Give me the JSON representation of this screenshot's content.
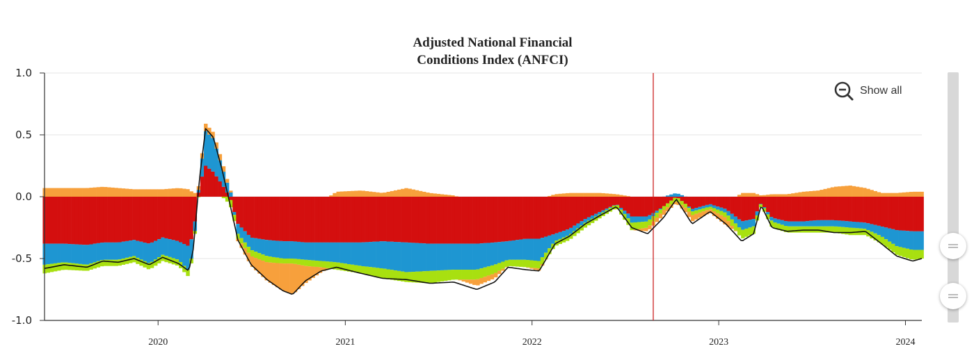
{
  "chart_data": {
    "type": "area",
    "title_lines": [
      "Adjusted National Financial",
      "Conditions Index (ANFCI)"
    ],
    "ylim": [
      -1.0,
      1.0
    ],
    "yticks": [
      "1.0",
      "0.5",
      "0.0",
      "-0.5",
      "-1.0"
    ],
    "xticks": [
      "2020",
      "2021",
      "2022",
      "2023",
      "2024"
    ],
    "xtick_dates": [
      "2020-01-01",
      "2021-01-01",
      "2022-01-01",
      "2023-01-01",
      "2024-01-01"
    ],
    "xrange": [
      "2019-05-24",
      "2024-02-02"
    ],
    "marker_date": "2022-08-26",
    "colors": {
      "red": "#d40f0f",
      "blue": "#1e96d2",
      "green": "#a8e010",
      "orange": "#f7a03c",
      "line": "#111111",
      "marker": "#cc2222",
      "grid": "#e6e6e6"
    },
    "series_order": [
      "red",
      "blue",
      "green",
      "orange"
    ],
    "series": [
      {
        "date": "2019-05-24",
        "red": -0.38,
        "blue": -0.17,
        "green": -0.07,
        "orange": 0.07,
        "anfci": -0.58
      },
      {
        "date": "2019-07-01",
        "red": -0.38,
        "blue": -0.15,
        "green": -0.06,
        "orange": 0.07,
        "anfci": -0.55
      },
      {
        "date": "2019-08-15",
        "red": -0.39,
        "blue": -0.16,
        "green": -0.05,
        "orange": 0.07,
        "anfci": -0.57
      },
      {
        "date": "2019-09-15",
        "red": -0.37,
        "blue": -0.14,
        "green": -0.05,
        "orange": 0.08,
        "anfci": -0.52
      },
      {
        "date": "2019-10-15",
        "red": -0.37,
        "blue": -0.14,
        "green": -0.05,
        "orange": 0.07,
        "anfci": -0.53
      },
      {
        "date": "2019-11-15",
        "red": -0.35,
        "blue": -0.13,
        "green": -0.05,
        "orange": 0.06,
        "anfci": -0.5
      },
      {
        "date": "2019-12-15",
        "red": -0.38,
        "blue": -0.16,
        "green": -0.05,
        "orange": 0.06,
        "anfci": -0.55
      },
      {
        "date": "2020-01-10",
        "red": -0.33,
        "blue": -0.14,
        "green": -0.05,
        "orange": 0.06,
        "anfci": -0.49
      },
      {
        "date": "2020-02-10",
        "red": -0.36,
        "blue": -0.15,
        "green": -0.05,
        "orange": 0.07,
        "anfci": -0.54
      },
      {
        "date": "2020-03-01",
        "red": -0.4,
        "blue": -0.2,
        "green": -0.05,
        "orange": 0.06,
        "anfci": -0.6
      },
      {
        "date": "2020-03-10",
        "red": -0.3,
        "blue": -0.12,
        "green": -0.03,
        "orange": 0.03,
        "anfci": -0.42
      },
      {
        "date": "2020-03-22",
        "red": 0.1,
        "blue": 0.05,
        "green": 0.0,
        "orange": 0.03,
        "anfci": 0.15
      },
      {
        "date": "2020-04-03",
        "red": 0.25,
        "blue": 0.28,
        "green": 0.0,
        "orange": 0.06,
        "anfci": 0.55
      },
      {
        "date": "2020-04-18",
        "red": 0.2,
        "blue": 0.27,
        "green": 0.0,
        "orange": 0.05,
        "anfci": 0.48
      },
      {
        "date": "2020-05-05",
        "red": 0.1,
        "blue": 0.14,
        "green": 0.0,
        "orange": 0.05,
        "anfci": 0.22
      },
      {
        "date": "2020-05-20",
        "red": 0.0,
        "blue": 0.05,
        "green": -0.06,
        "orange": 0.02,
        "anfci": -0.05
      },
      {
        "date": "2020-06-05",
        "red": -0.22,
        "blue": -0.08,
        "green": -0.04,
        "orange": -0.02,
        "anfci": -0.35
      },
      {
        "date": "2020-07-01",
        "red": -0.33,
        "blue": -0.1,
        "green": -0.05,
        "orange": -0.08,
        "anfci": -0.55
      },
      {
        "date": "2020-08-01",
        "red": -0.35,
        "blue": -0.13,
        "green": -0.05,
        "orange": -0.15,
        "anfci": -0.67
      },
      {
        "date": "2020-09-01",
        "red": -0.36,
        "blue": -0.14,
        "green": -0.04,
        "orange": -0.22,
        "anfci": -0.76
      },
      {
        "date": "2020-09-20",
        "red": -0.36,
        "blue": -0.14,
        "green": -0.04,
        "orange": -0.25,
        "anfci": -0.79
      },
      {
        "date": "2020-10-15",
        "red": -0.37,
        "blue": -0.14,
        "green": -0.05,
        "orange": -0.14,
        "anfci": -0.68
      },
      {
        "date": "2020-11-15",
        "red": -0.37,
        "blue": -0.15,
        "green": -0.05,
        "orange": -0.04,
        "anfci": -0.6
      },
      {
        "date": "2020-12-15",
        "red": -0.37,
        "blue": -0.16,
        "green": -0.06,
        "orange": 0.04,
        "anfci": -0.57
      },
      {
        "date": "2021-02-01",
        "red": -0.37,
        "blue": -0.19,
        "green": -0.06,
        "orange": 0.05,
        "anfci": -0.62
      },
      {
        "date": "2021-03-15",
        "red": -0.36,
        "blue": -0.22,
        "green": -0.08,
        "orange": 0.03,
        "anfci": -0.66
      },
      {
        "date": "2021-05-01",
        "red": -0.37,
        "blue": -0.24,
        "green": -0.08,
        "orange": 0.07,
        "anfci": -0.67
      },
      {
        "date": "2021-06-15",
        "red": -0.38,
        "blue": -0.22,
        "green": -0.1,
        "orange": 0.03,
        "anfci": -0.7
      },
      {
        "date": "2021-08-01",
        "red": -0.38,
        "blue": -0.21,
        "green": -0.08,
        "orange": 0.01,
        "anfci": -0.69
      },
      {
        "date": "2021-09-15",
        "red": -0.38,
        "blue": -0.21,
        "green": -0.08,
        "orange": -0.05,
        "anfci": -0.75
      },
      {
        "date": "2021-10-20",
        "red": -0.37,
        "blue": -0.18,
        "green": -0.07,
        "orange": -0.04,
        "anfci": -0.69
      },
      {
        "date": "2021-11-15",
        "red": -0.36,
        "blue": -0.15,
        "green": -0.05,
        "orange": 0.0,
        "anfci": -0.57
      },
      {
        "date": "2021-12-20",
        "red": -0.34,
        "blue": -0.17,
        "green": -0.06,
        "orange": 0.0,
        "anfci": -0.59
      },
      {
        "date": "2022-01-15",
        "red": -0.34,
        "blue": -0.18,
        "green": -0.06,
        "orange": -0.02,
        "anfci": -0.6
      },
      {
        "date": "2022-02-15",
        "red": -0.3,
        "blue": -0.06,
        "green": -0.04,
        "orange": 0.02,
        "anfci": -0.38
      },
      {
        "date": "2022-03-15",
        "red": -0.26,
        "blue": -0.05,
        "green": -0.04,
        "orange": 0.03,
        "anfci": -0.32
      },
      {
        "date": "2022-04-15",
        "red": -0.18,
        "blue": -0.03,
        "green": -0.04,
        "orange": 0.03,
        "anfci": -0.22
      },
      {
        "date": "2022-05-15",
        "red": -0.12,
        "blue": -0.02,
        "green": -0.03,
        "orange": 0.03,
        "anfci": -0.15
      },
      {
        "date": "2022-06-15",
        "red": -0.06,
        "blue": 0.0,
        "green": -0.03,
        "orange": 0.02,
        "anfci": -0.08
      },
      {
        "date": "2022-07-15",
        "red": -0.16,
        "blue": -0.05,
        "green": -0.06,
        "orange": 0.0,
        "anfci": -0.25
      },
      {
        "date": "2022-08-15",
        "red": -0.16,
        "blue": -0.04,
        "green": -0.05,
        "orange": -0.03,
        "anfci": -0.3
      },
      {
        "date": "2022-09-15",
        "red": -0.08,
        "blue": 0.0,
        "green": -0.03,
        "orange": -0.04,
        "anfci": -0.17
      },
      {
        "date": "2022-10-10",
        "red": 0.0,
        "blue": 0.03,
        "green": -0.03,
        "orange": -0.02,
        "anfci": -0.02
      },
      {
        "date": "2022-11-10",
        "red": -0.1,
        "blue": -0.02,
        "green": -0.03,
        "orange": -0.05,
        "anfci": -0.22
      },
      {
        "date": "2022-12-15",
        "red": -0.06,
        "blue": -0.02,
        "green": -0.02,
        "orange": -0.03,
        "anfci": -0.12
      },
      {
        "date": "2023-01-15",
        "red": -0.1,
        "blue": -0.03,
        "green": -0.04,
        "orange": -0.06,
        "anfci": -0.22
      },
      {
        "date": "2023-02-15",
        "red": -0.2,
        "blue": -0.07,
        "green": -0.07,
        "orange": 0.03,
        "anfci": -0.36
      },
      {
        "date": "2023-03-10",
        "red": -0.18,
        "blue": -0.06,
        "green": -0.06,
        "orange": 0.03,
        "anfci": -0.3
      },
      {
        "date": "2023-03-25",
        "red": -0.05,
        "blue": 0.0,
        "green": -0.02,
        "orange": 0.01,
        "anfci": -0.07
      },
      {
        "date": "2023-04-15",
        "red": -0.17,
        "blue": -0.03,
        "green": -0.05,
        "orange": 0.02,
        "anfci": -0.25
      },
      {
        "date": "2023-05-15",
        "red": -0.2,
        "blue": -0.04,
        "green": -0.05,
        "orange": 0.02,
        "anfci": -0.28
      },
      {
        "date": "2023-06-15",
        "red": -0.2,
        "blue": -0.04,
        "green": -0.05,
        "orange": 0.04,
        "anfci": -0.27
      },
      {
        "date": "2023-07-15",
        "red": -0.19,
        "blue": -0.05,
        "green": -0.05,
        "orange": 0.05,
        "anfci": -0.27
      },
      {
        "date": "2023-08-15",
        "red": -0.19,
        "blue": -0.05,
        "green": -0.05,
        "orange": 0.08,
        "anfci": -0.29
      },
      {
        "date": "2023-09-15",
        "red": -0.2,
        "blue": -0.05,
        "green": -0.06,
        "orange": 0.09,
        "anfci": -0.29
      },
      {
        "date": "2023-10-15",
        "red": -0.21,
        "blue": -0.05,
        "green": -0.05,
        "orange": 0.07,
        "anfci": -0.28
      },
      {
        "date": "2023-11-15",
        "red": -0.24,
        "blue": -0.08,
        "green": -0.06,
        "orange": 0.03,
        "anfci": -0.38
      },
      {
        "date": "2023-12-15",
        "red": -0.27,
        "blue": -0.13,
        "green": -0.07,
        "orange": 0.03,
        "anfci": -0.48
      },
      {
        "date": "2024-01-15",
        "red": -0.28,
        "blue": -0.15,
        "green": -0.08,
        "orange": 0.04,
        "anfci": -0.52
      },
      {
        "date": "2024-02-02",
        "red": -0.28,
        "blue": -0.15,
        "green": -0.07,
        "orange": 0.04,
        "anfci": -0.5
      }
    ]
  },
  "controls": {
    "show_all_label": "Show all",
    "show_all_icon": "zoom-out-icon",
    "handle_icon": "drag-handle-icon"
  }
}
